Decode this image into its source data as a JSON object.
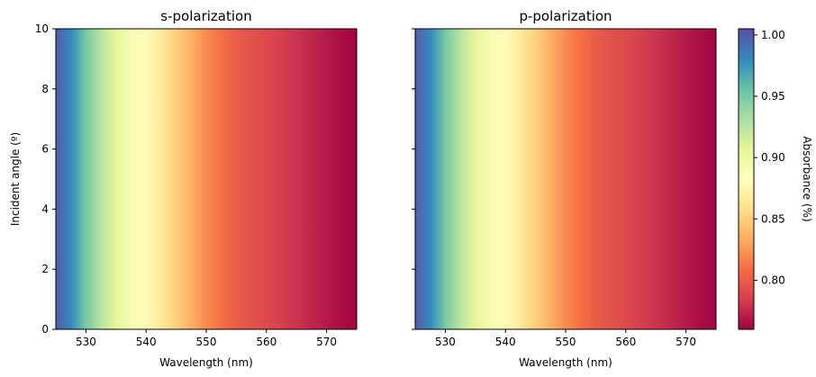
{
  "chart_data": [
    {
      "type": "heatmap",
      "title": "s-polarization",
      "xlabel": "Wavelength (nm)",
      "ylabel": "Incident angle (º)",
      "xlim": [
        525,
        575
      ],
      "ylim": [
        0,
        10
      ],
      "xticks": [
        "530",
        "540",
        "550",
        "560",
        "570"
      ],
      "yticks": [
        "0",
        "2",
        "4",
        "6",
        "8",
        "10"
      ],
      "colormap": "Spectral",
      "x": [
        525,
        527.5,
        530,
        532.5,
        535,
        537.5,
        540,
        542.5,
        545,
        547.5,
        550,
        552.5,
        555,
        557.5,
        560,
        562.5,
        565,
        567.5,
        570,
        572.5,
        575
      ],
      "values": [
        1.0,
        0.98,
        0.95,
        0.925,
        0.905,
        0.89,
        0.88,
        0.865,
        0.85,
        0.835,
        0.82,
        0.81,
        0.8,
        0.795,
        0.79,
        0.785,
        0.78,
        0.775,
        0.77,
        0.765,
        0.762
      ]
    },
    {
      "type": "heatmap",
      "title": "p-polarization",
      "xlabel": "Wavelength (nm)",
      "ylabel": "",
      "xlim": [
        525,
        575
      ],
      "ylim": [
        0,
        10
      ],
      "xticks": [
        "530",
        "540",
        "550",
        "560",
        "570"
      ],
      "yticks": [],
      "colormap": "Spectral",
      "x": [
        525,
        527.5,
        530,
        532.5,
        535,
        537.5,
        540,
        542.5,
        545,
        547.5,
        550,
        552.5,
        555,
        557.5,
        560,
        562.5,
        565,
        567.5,
        570,
        572.5,
        575
      ],
      "values": [
        1.0,
        0.98,
        0.95,
        0.925,
        0.905,
        0.89,
        0.88,
        0.865,
        0.85,
        0.835,
        0.82,
        0.81,
        0.8,
        0.795,
        0.79,
        0.785,
        0.78,
        0.775,
        0.77,
        0.765,
        0.762
      ]
    }
  ],
  "colorbar": {
    "label": "Absorbance (%)",
    "range": [
      0.76,
      1.005
    ],
    "ticks": [
      "0.80",
      "0.85",
      "0.90",
      "0.95",
      "1.00"
    ],
    "tick_values": [
      0.8,
      0.85,
      0.9,
      0.95,
      1.0
    ]
  }
}
